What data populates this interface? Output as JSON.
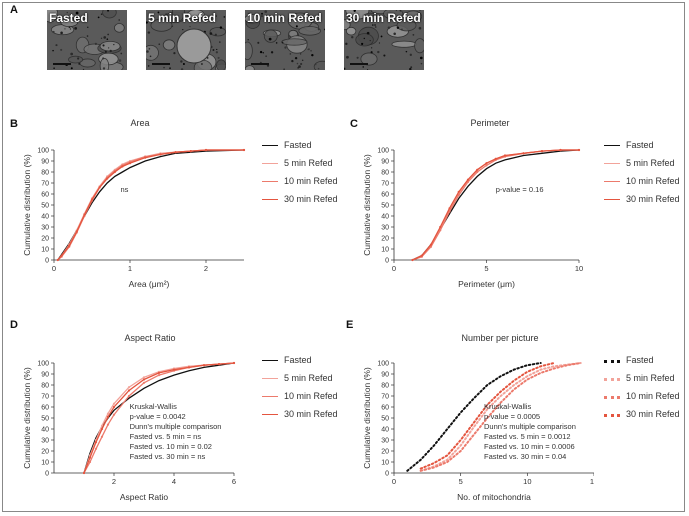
{
  "panel_a": {
    "letter": "A",
    "images": [
      {
        "label": "Fasted"
      },
      {
        "label": "5 min Refed"
      },
      {
        "label": "10 min Refed"
      },
      {
        "label": "30 min Refed"
      }
    ]
  },
  "colors": {
    "fasted": "#111111",
    "refed5": "#f2a39a",
    "refed10": "#ec7a6c",
    "refed30": "#e4553f"
  },
  "legend": [
    "Fasted",
    "5 min Refed",
    "10 min Refed",
    "30 min Refed"
  ],
  "chart_data": [
    {
      "id": "B",
      "letter": "B",
      "type": "line",
      "title": "Area",
      "xlabel": "Area (μm²)",
      "ylabel": "Cumulative distribution (%)",
      "xlim": [
        0,
        2.5
      ],
      "ylim": [
        0,
        100
      ],
      "xticks": [
        0,
        1,
        2
      ],
      "yticks": [
        0,
        10,
        20,
        30,
        40,
        50,
        60,
        70,
        80,
        90,
        100
      ],
      "annotations": [
        "ns"
      ],
      "series": [
        {
          "name": "Fasted",
          "x": [
            0.05,
            0.1,
            0.2,
            0.3,
            0.4,
            0.5,
            0.6,
            0.7,
            0.8,
            0.9,
            1.0,
            1.2,
            1.4,
            1.6,
            1.8,
            2.0,
            2.5
          ],
          "y": [
            0,
            5,
            15,
            27,
            40,
            52,
            62,
            70,
            76,
            80,
            84,
            90,
            94,
            97,
            98,
            99,
            100
          ]
        },
        {
          "name": "5 min Refed",
          "x": [
            0.05,
            0.1,
            0.2,
            0.3,
            0.4,
            0.5,
            0.6,
            0.7,
            0.8,
            0.9,
            1.0,
            1.2,
            1.4,
            1.6,
            1.8,
            2.0,
            2.5
          ],
          "y": [
            0,
            4,
            14,
            27,
            42,
            56,
            67,
            76,
            82,
            87,
            90,
            94,
            97,
            98,
            99,
            100,
            100
          ]
        },
        {
          "name": "10 min Refed",
          "x": [
            0.05,
            0.1,
            0.2,
            0.3,
            0.4,
            0.5,
            0.6,
            0.7,
            0.8,
            0.9,
            1.0,
            1.2,
            1.4,
            1.6,
            1.8,
            2.0,
            2.5
          ],
          "y": [
            0,
            3,
            12,
            25,
            40,
            54,
            66,
            75,
            81,
            86,
            89,
            94,
            96,
            98,
            99,
            100,
            100
          ]
        },
        {
          "name": "30 min Refed",
          "x": [
            0.05,
            0.1,
            0.2,
            0.3,
            0.4,
            0.5,
            0.6,
            0.7,
            0.8,
            0.9,
            1.0,
            1.2,
            1.4,
            1.6,
            1.8,
            2.0,
            2.5
          ],
          "y": [
            0,
            4,
            13,
            26,
            41,
            55,
            66,
            74,
            80,
            85,
            88,
            93,
            96,
            98,
            99,
            100,
            100
          ]
        }
      ]
    },
    {
      "id": "C",
      "letter": "C",
      "type": "line",
      "title": "Perimeter",
      "xlabel": "Perimeter (μm)",
      "ylabel": "Cumulative distribution (%)",
      "xlim": [
        0,
        10
      ],
      "ylim": [
        0,
        100
      ],
      "xticks": [
        0,
        5,
        10
      ],
      "yticks": [
        0,
        10,
        20,
        30,
        40,
        50,
        60,
        70,
        80,
        90,
        100
      ],
      "annotations": [
        "p-value = 0.16"
      ],
      "series": [
        {
          "name": "Fasted",
          "x": [
            1.0,
            1.5,
            2.0,
            2.5,
            3.0,
            3.5,
            4.0,
            4.5,
            5.0,
            5.5,
            6.0,
            7.0,
            8.0,
            9.0,
            10.0
          ],
          "y": [
            0,
            4,
            14,
            28,
            42,
            56,
            67,
            76,
            83,
            88,
            91,
            95,
            97,
            99,
            100
          ]
        },
        {
          "name": "5 min Refed",
          "x": [
            1.0,
            1.5,
            2.0,
            2.5,
            3.0,
            3.5,
            4.0,
            4.5,
            5.0,
            5.5,
            6.0,
            7.0,
            8.0,
            9.0,
            10.0
          ],
          "y": [
            0,
            3,
            13,
            29,
            46,
            61,
            73,
            82,
            88,
            92,
            95,
            97,
            99,
            100,
            100
          ]
        },
        {
          "name": "10 min Refed",
          "x": [
            1.0,
            1.5,
            2.0,
            2.5,
            3.0,
            3.5,
            4.0,
            4.5,
            5.0,
            5.5,
            6.0,
            7.0,
            8.0,
            9.0,
            10.0
          ],
          "y": [
            0,
            3,
            12,
            27,
            44,
            59,
            71,
            80,
            86,
            91,
            94,
            97,
            99,
            100,
            100
          ]
        },
        {
          "name": "30 min Refed",
          "x": [
            1.0,
            1.5,
            2.0,
            2.5,
            3.0,
            3.5,
            4.0,
            4.5,
            5.0,
            5.5,
            6.0,
            7.0,
            8.0,
            9.0,
            10.0
          ],
          "y": [
            0,
            4,
            14,
            30,
            47,
            62,
            73,
            82,
            88,
            92,
            95,
            97,
            99,
            100,
            100
          ]
        }
      ]
    },
    {
      "id": "D",
      "letter": "D",
      "type": "line",
      "title": "Aspect Ratio",
      "xlabel": "Aspect Ratio",
      "ylabel": "Cumulative distribution (%)",
      "xlim": [
        0,
        6
      ],
      "ylim": [
        0,
        100
      ],
      "xticks": [
        2,
        4,
        6
      ],
      "yticks": [
        0,
        10,
        20,
        30,
        40,
        50,
        60,
        70,
        80,
        90,
        100
      ],
      "annotations": [
        "Kruskal-Wallis",
        "p-value = 0.0042",
        "Dunn's multiple comparison",
        "Fasted vs. 5 min = ns",
        "Fasted vs. 10 min = 0.02",
        "Fasted vs. 30 min = ns"
      ],
      "series": [
        {
          "name": "Fasted",
          "x": [
            1.0,
            1.2,
            1.4,
            1.6,
            1.8,
            2.0,
            2.5,
            3.0,
            3.5,
            4.0,
            4.5,
            5.0,
            5.5,
            6.0
          ],
          "y": [
            0,
            18,
            32,
            42,
            50,
            57,
            68,
            77,
            84,
            89,
            93,
            96,
            98,
            100
          ]
        },
        {
          "name": "5 min Refed",
          "x": [
            1.0,
            1.2,
            1.4,
            1.6,
            1.8,
            2.0,
            2.5,
            3.0,
            3.5,
            4.0,
            4.5,
            5.0,
            5.5,
            6.0
          ],
          "y": [
            0,
            16,
            30,
            43,
            54,
            63,
            78,
            87,
            92,
            95,
            97,
            98,
            99,
            100
          ]
        },
        {
          "name": "10 min Refed",
          "x": [
            1.0,
            1.2,
            1.4,
            1.6,
            1.8,
            2.0,
            2.5,
            3.0,
            3.5,
            4.0,
            4.5,
            5.0,
            5.5,
            6.0
          ],
          "y": [
            0,
            10,
            22,
            33,
            44,
            53,
            70,
            82,
            89,
            93,
            96,
            98,
            99,
            100
          ]
        },
        {
          "name": "30 min Refed",
          "x": [
            1.0,
            1.2,
            1.4,
            1.6,
            1.8,
            2.0,
            2.5,
            3.0,
            3.5,
            4.0,
            4.5,
            5.0,
            5.5,
            6.0
          ],
          "y": [
            0,
            14,
            28,
            40,
            51,
            60,
            75,
            85,
            91,
            94,
            96,
            98,
            99,
            100
          ]
        }
      ]
    },
    {
      "id": "E",
      "letter": "E",
      "type": "line",
      "title": "Number per picture",
      "dotted": true,
      "xlabel": "No. of mitochondria",
      "ylabel": "Cumulative distribution (%)",
      "xlim": [
        0,
        15
      ],
      "ylim": [
        0,
        100
      ],
      "xticks": [
        0,
        5,
        10,
        15
      ],
      "yticks": [
        0,
        10,
        20,
        30,
        40,
        50,
        60,
        70,
        80,
        90,
        100
      ],
      "annotations": [
        "Kruskal-Wallis",
        "p-value = 0.0005",
        "Dunn's multiple comparison",
        "Fasted vs. 5 min = 0.0012",
        "Fasted vs. 10 min = 0.0006",
        "Fasted vs. 30 min = 0.04"
      ],
      "series": [
        {
          "name": "Fasted",
          "x": [
            1,
            2,
            3,
            4,
            5,
            6,
            7,
            8,
            9,
            10,
            11
          ],
          "y": [
            2,
            12,
            25,
            40,
            55,
            68,
            80,
            88,
            94,
            98,
            100
          ]
        },
        {
          "name": "5 min Refed",
          "x": [
            2,
            3,
            4,
            5,
            6,
            7,
            8,
            9,
            10,
            11,
            12,
            14
          ],
          "y": [
            2,
            6,
            12,
            25,
            42,
            58,
            70,
            80,
            88,
            94,
            97,
            100
          ]
        },
        {
          "name": "10 min Refed",
          "x": [
            2,
            3,
            4,
            5,
            6,
            7,
            8,
            9,
            10,
            11,
            12,
            13,
            14
          ],
          "y": [
            2,
            5,
            10,
            20,
            35,
            50,
            64,
            76,
            85,
            91,
            95,
            98,
            100
          ]
        },
        {
          "name": "30 min Refed",
          "x": [
            2,
            3,
            4,
            5,
            6,
            7,
            8,
            9,
            10,
            11,
            12
          ],
          "y": [
            4,
            9,
            16,
            30,
            46,
            62,
            74,
            84,
            92,
            97,
            100
          ]
        }
      ]
    }
  ]
}
